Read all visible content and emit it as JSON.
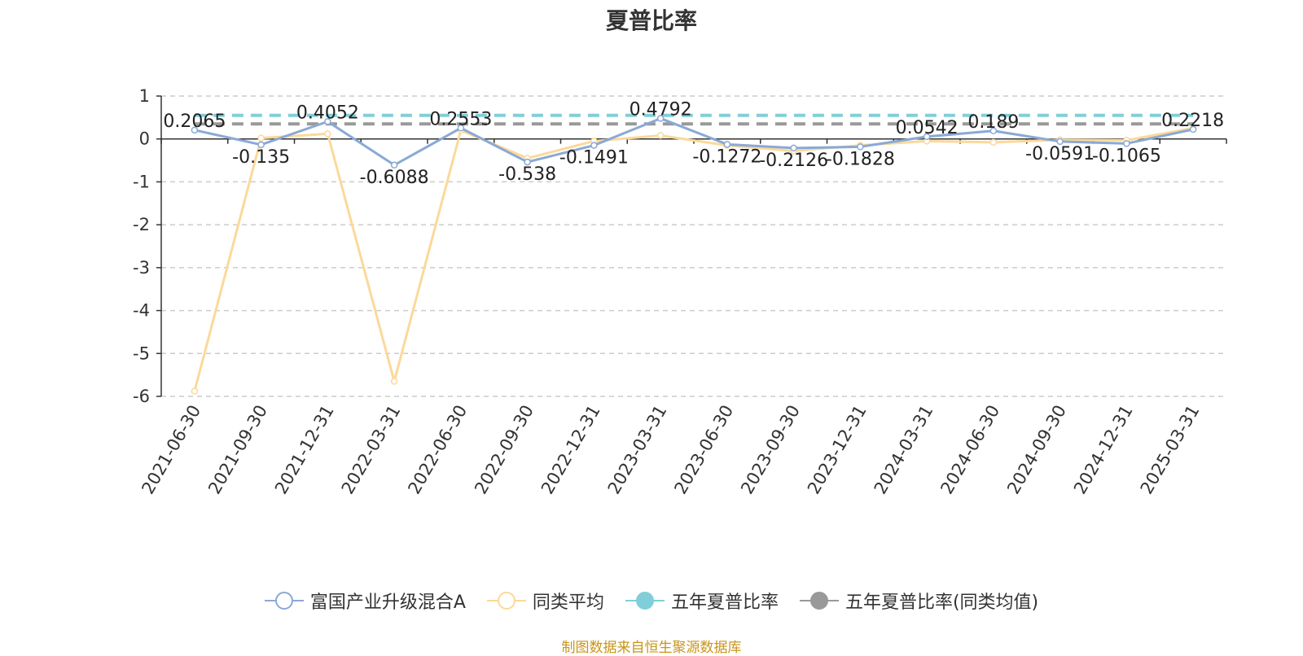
{
  "title": "夏普比率",
  "source": "制图数据来自恒生聚源数据库",
  "colors": {
    "fund": "#8aa9d6",
    "peer_avg": "#fbd99a",
    "five_year": "#80cfd8",
    "five_year_peer": "#999999",
    "axis": "#333333",
    "grid": "#cccccc"
  },
  "legend": [
    {
      "name": "富国产业升级混合A",
      "symbol": "hollow-circle",
      "color": "#8aa9d6"
    },
    {
      "name": "同类平均",
      "symbol": "hollow-circle",
      "color": "#fbd99a"
    },
    {
      "name": "五年夏普比率",
      "symbol": "filled-circle",
      "color": "#80cfd8"
    },
    {
      "name": "五年夏普比率(同类均值)",
      "symbol": "filled-circle",
      "color": "#999999"
    }
  ],
  "chart_data": {
    "type": "line",
    "title": "夏普比率",
    "categories": [
      "2021-06-30",
      "2021-09-30",
      "2021-12-31",
      "2022-03-31",
      "2022-06-30",
      "2022-09-30",
      "2022-12-31",
      "2023-03-31",
      "2023-06-30",
      "2023-09-30",
      "2023-12-31",
      "2024-03-31",
      "2024-06-30",
      "2024-09-30",
      "2024-12-31",
      "2025-03-31"
    ],
    "ylim": [
      -6,
      1
    ],
    "yticks": [
      "1",
      "0",
      "-1",
      "-2",
      "-3",
      "-4",
      "-5",
      "-6"
    ],
    "grid": true,
    "legend_position": "bottom",
    "series": [
      {
        "name": "富国产业升级混合A",
        "values": [
          0.2065,
          -0.135,
          0.4052,
          -0.6088,
          0.2553,
          -0.538,
          -0.1491,
          0.4792,
          -0.1272,
          -0.2126,
          -0.1828,
          0.0542,
          0.189,
          -0.0591,
          -0.1065,
          0.2218
        ],
        "labels": [
          "0.2065",
          "-0.135",
          "0.4052",
          "-0.6088",
          "0.2553",
          "-0.538",
          "-0.1491",
          "0.4792",
          "-0.1272",
          "-0.2126",
          "-0.1828",
          "0.0542",
          "0.189",
          "-0.0591",
          "-0.1065",
          "0.2218"
        ]
      },
      {
        "name": "同类平均",
        "values": [
          -5.88,
          0.02,
          0.12,
          -5.65,
          0.2,
          -0.45,
          -0.05,
          0.08,
          -0.15,
          -0.28,
          -0.15,
          -0.05,
          -0.08,
          -0.02,
          -0.03,
          0.25
        ]
      },
      {
        "name": "五年夏普比率",
        "constant": 0.55
      },
      {
        "name": "五年夏普比率(同类均值)",
        "constant": 0.35
      }
    ]
  }
}
